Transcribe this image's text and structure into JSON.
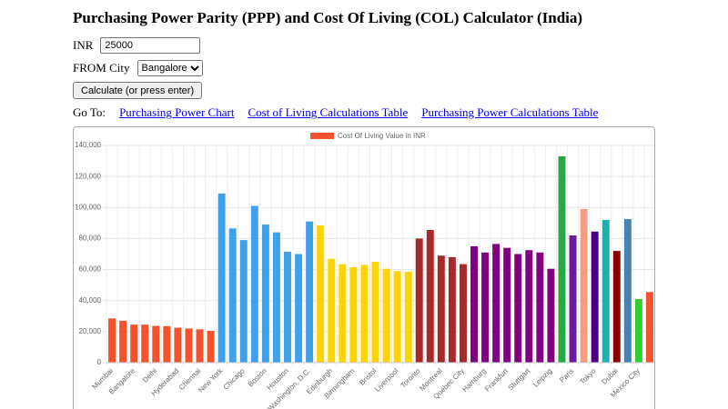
{
  "header": {
    "title": "Purchasing Power Parity (PPP) and Cost Of Living (COL) Calculator (India)"
  },
  "form": {
    "amount_label": "INR",
    "amount_value": "25000",
    "city_label": "FROM City",
    "city_value": "Bangalore",
    "button": "Calculate (or press enter)"
  },
  "nav": {
    "label": "Go To:",
    "links": [
      "Purchasing Power Chart",
      "Cost of Living Calculations Table",
      "Purchasing Power Calculations Table"
    ]
  },
  "chart_data": {
    "type": "bar",
    "legend": "top",
    "grid": true,
    "categories": [
      "Mumbai",
      null,
      "Bangalore",
      null,
      "Delhi",
      null,
      "Hyderabad",
      null,
      "Chennai",
      null,
      "New York",
      null,
      "Chicago",
      null,
      "Boston",
      null,
      "Houston",
      null,
      "Washington, D.C.",
      null,
      "Edinburgh",
      null,
      "Birmingham",
      null,
      "Bristol",
      null,
      "Liverpool",
      null,
      "Toronto",
      null,
      "Montreal",
      null,
      "Quebec City",
      null,
      "Hamburg",
      null,
      "Frankfurt",
      null,
      "Stuttgart",
      null,
      "Leipzig",
      null,
      "Paris",
      null,
      "Tokyo",
      null,
      "Dubai",
      null,
      "Mexico City",
      null
    ],
    "series": [
      {
        "name": "Cost Of Living Value in INR",
        "values": [
          28500,
          27000,
          24500,
          24500,
          23700,
          23500,
          22500,
          22000,
          21500,
          20500,
          109000,
          86500,
          79000,
          101000,
          89000,
          84000,
          71500,
          70000,
          91000,
          88500,
          67000,
          63500,
          61500,
          63000,
          65000,
          60500,
          59000,
          58500,
          80000,
          85500,
          69000,
          68000,
          63500,
          75000,
          71000,
          76500,
          74000,
          70000,
          72500,
          71000,
          60500,
          133000,
          82000,
          99000,
          84500,
          92000,
          72000,
          92500,
          41000,
          45500
        ],
        "colors": [
          "#f4512c",
          "#f4512c",
          "#f4512c",
          "#f4512c",
          "#f4512c",
          "#f4512c",
          "#f4512c",
          "#f4512c",
          "#f4512c",
          "#f4512c",
          "#3fa0ec",
          "#3fa0ec",
          "#3fa0ec",
          "#3fa0ec",
          "#3fa0ec",
          "#3fa0ec",
          "#3fa0ec",
          "#3fa0ec",
          "#3fa0ec",
          "#ffd400",
          "#ffd400",
          "#ffd400",
          "#ffd400",
          "#ffd400",
          "#ffd400",
          "#ffd400",
          "#ffd400",
          "#ffd400",
          "#a52a2a",
          "#a52a2a",
          "#a52a2a",
          "#a52a2a",
          "#a52a2a",
          "#800080",
          "#800080",
          "#800080",
          "#800080",
          "#800080",
          "#800080",
          "#800080",
          "#800080",
          "#28a745",
          "#6a1b9a",
          "#f59c84",
          "#4b0082",
          "#20b2aa",
          "#8b0000",
          "#4682b4",
          "#32cd32",
          "#f4512c"
        ]
      }
    ],
    "ylim": [
      0,
      140000
    ],
    "yticks": [
      0,
      {
        "value": 20000,
        "label": "20,000"
      },
      {
        "value": 40000,
        "label": "40,000"
      },
      {
        "value": 60000,
        "label": "60,000"
      },
      {
        "value": 80000,
        "label": "80,000"
      },
      {
        "value": 100000,
        "label": "100,000"
      },
      {
        "value": 120000,
        "label": "120,000"
      },
      {
        "value": 140000,
        "label": "140,000"
      }
    ]
  }
}
